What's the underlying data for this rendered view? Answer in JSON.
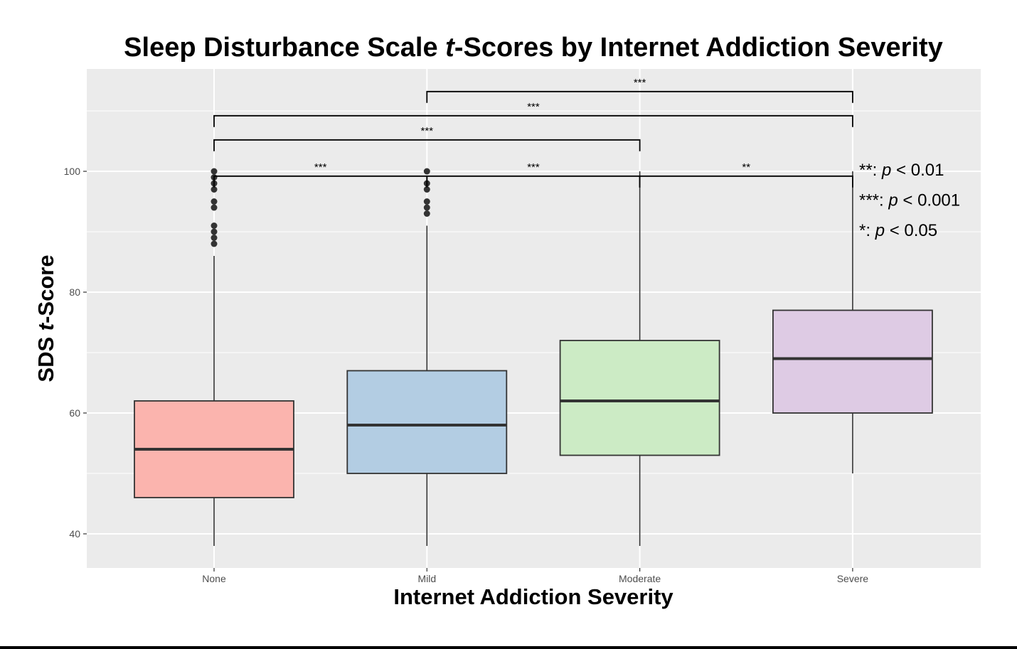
{
  "chart_data": {
    "type": "box",
    "title_parts": [
      "Sleep Disturbance Scale ",
      "t",
      "-Scores by Internet Addiction Severity"
    ],
    "xlabel": "Internet Addiction Severity",
    "ylabel_parts": [
      "SDS ",
      "t",
      "-Score"
    ],
    "categories": [
      "None",
      "Mild",
      "Moderate",
      "Severe"
    ],
    "ylim": [
      34,
      117
    ],
    "y_ticks": [
      40,
      60,
      80,
      100
    ],
    "grid": true,
    "boxes": [
      {
        "category": "None",
        "whisker_low": 38,
        "q1": 46,
        "median": 54,
        "q3": 62,
        "whisker_high": 86,
        "outliers": [
          88,
          89,
          90,
          91,
          94,
          95,
          97,
          98,
          99,
          100
        ],
        "color": "#fbb4ae"
      },
      {
        "category": "Mild",
        "whisker_low": 38,
        "q1": 50,
        "median": 58,
        "q3": 67,
        "whisker_high": 91,
        "outliers": [
          93,
          94,
          95,
          97,
          98,
          100
        ],
        "color": "#b3cde3"
      },
      {
        "category": "Moderate",
        "whisker_low": 38,
        "q1": 53,
        "median": 62,
        "q3": 72,
        "whisker_high": 100,
        "outliers": [],
        "color": "#ccebc5"
      },
      {
        "category": "Severe",
        "whisker_low": 50,
        "q1": 60,
        "median": 69,
        "q3": 77,
        "whisker_high": 100,
        "outliers": [],
        "color": "#decbe4"
      }
    ],
    "significance_brackets": [
      {
        "from": "None",
        "to": "Mild",
        "label": "***",
        "y": 99.2
      },
      {
        "from": "Mild",
        "to": "Moderate",
        "label": "***",
        "y": 99.2
      },
      {
        "from": "Moderate",
        "to": "Severe",
        "label": "**",
        "y": 99.2
      },
      {
        "from": "None",
        "to": "Moderate",
        "label": "***",
        "y": 105.2
      },
      {
        "from": "None",
        "to": "Severe",
        "label": "***",
        "y": 109.2
      },
      {
        "from": "Mild",
        "to": "Severe",
        "label": "***",
        "y": 113.2
      }
    ],
    "significance_legend": [
      {
        "stars": "**",
        "text": " < 0.01"
      },
      {
        "stars": "***",
        "text": " < 0.001"
      },
      {
        "stars": "*",
        "text": " < 0.05"
      }
    ],
    "p_symbol": "p",
    "colors": {
      "panel": "#ebebeb",
      "grid": "#ffffff",
      "box_stroke": "#333333",
      "outlier": "#333333"
    }
  }
}
